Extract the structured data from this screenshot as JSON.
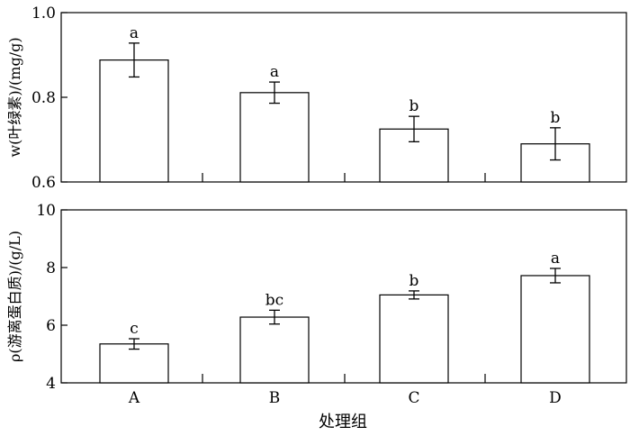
{
  "chart_data": [
    {
      "type": "bar",
      "categories": [
        "A",
        "B",
        "C",
        "D"
      ],
      "values": [
        0.888,
        0.811,
        0.725,
        0.69
      ],
      "errors": [
        0.04,
        0.025,
        0.03,
        0.038
      ],
      "significance": [
        "a",
        "a",
        "b",
        "b"
      ],
      "ylabel": "w(叶绿素)/(mg/g)",
      "ylim": [
        0.6,
        1.0
      ],
      "yticks": [
        "0.6",
        "0.8",
        "1.0"
      ],
      "ytick_values": [
        0.6,
        0.8,
        1.0
      ],
      "grid": false,
      "bar_fill": "#ffffff",
      "stroke": "#000000"
    },
    {
      "type": "bar",
      "categories": [
        "A",
        "B",
        "C",
        "D"
      ],
      "values": [
        5.35,
        6.28,
        7.05,
        7.72
      ],
      "errors": [
        0.18,
        0.24,
        0.14,
        0.25
      ],
      "significance": [
        "c",
        "bc",
        "b",
        "a"
      ],
      "ylabel": "ρ(游离蛋白质)/(g/L)",
      "ylim": [
        4,
        10
      ],
      "yticks": [
        "4",
        "6",
        "8",
        "10"
      ],
      "ytick_values": [
        4,
        6,
        8,
        10
      ],
      "grid": false,
      "bar_fill": "#ffffff",
      "stroke": "#000000"
    }
  ],
  "xlabel": "处理组"
}
